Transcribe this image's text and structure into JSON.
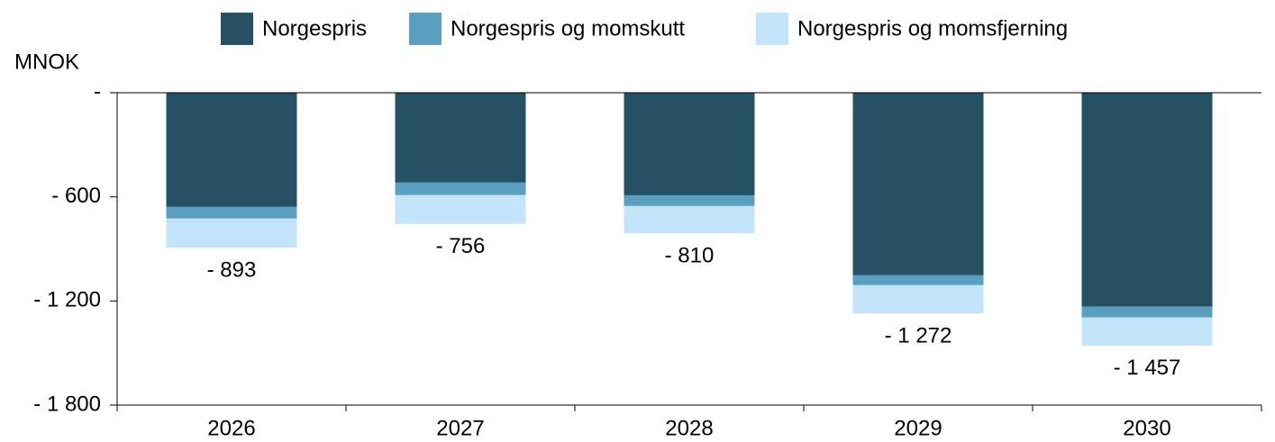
{
  "chart_data": {
    "type": "stacked_bar",
    "y_label": "MNOK",
    "categories": [
      "2026",
      "2027",
      "2028",
      "2029",
      "2030"
    ],
    "series": [
      {
        "name": "Norgespris",
        "color": "#265063",
        "values": [
          -658,
          -518,
          -591,
          -1052,
          -1233
        ]
      },
      {
        "name": "Norgespris og momskutt",
        "color": "#5b9fc0",
        "values": [
          -67,
          -72,
          -62,
          -57,
          -62
        ]
      },
      {
        "name": "Norgespris og momsfjerning",
        "color": "#c2e3f8",
        "values": [
          -168,
          -166,
          -157,
          -163,
          -162
        ]
      }
    ],
    "totals": {
      "values": [
        -893,
        -756,
        -810,
        -1272,
        -1457
      ],
      "value_labels": [
        "- 893",
        "- 756",
        "- 810",
        "- 1 272",
        "- 1 457"
      ]
    },
    "ylim": [
      -1800,
      0
    ],
    "yticks": [
      {
        "value": 0,
        "label": "-"
      },
      {
        "value": -600,
        "label": "- 600"
      },
      {
        "value": -1200,
        "label": "- 1 200"
      },
      {
        "value": -1800,
        "label": "- 1 800"
      }
    ],
    "legend": "top"
  }
}
